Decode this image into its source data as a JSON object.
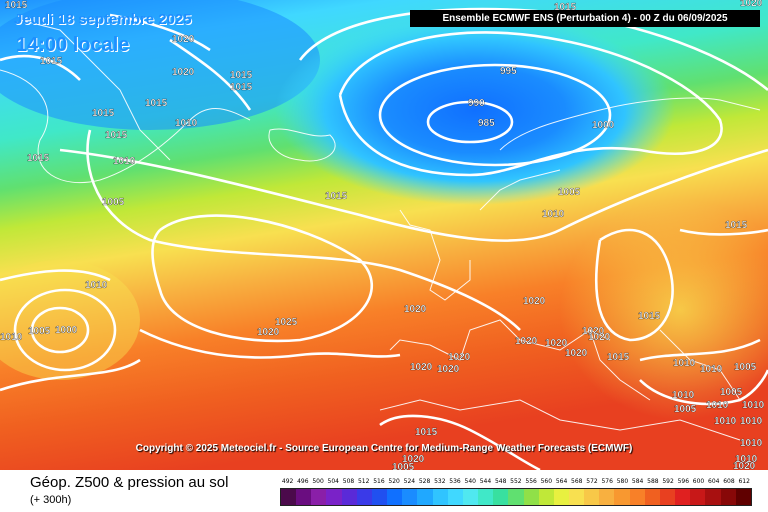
{
  "header": {
    "date": "Jeudi 18 septembre 2025",
    "time": "14:00 locale",
    "model": "Ensemble ECMWF ENS  (Perturbation 4)  -  00 Z du 06/09/2025"
  },
  "copyright": "Copyright © 2025 Meteociel.fr - Source European Centre for Medium-Range Weather Forecasts (ECMWF)",
  "footer": {
    "title": "Géop. Z500 & pression au sol",
    "subtitle": "(+ 300h)"
  },
  "scale": {
    "ticks": [
      "492",
      "496",
      "500",
      "504",
      "508",
      "512",
      "516",
      "520",
      "524",
      "528",
      "532",
      "536",
      "540",
      "544",
      "548",
      "552",
      "556",
      "560",
      "564",
      "568",
      "572",
      "576",
      "580",
      "584",
      "588",
      "592",
      "596",
      "600",
      "604",
      "608",
      "612"
    ],
    "colors": [
      "#4b0a4b",
      "#6a0d80",
      "#8a1fa8",
      "#7a22c8",
      "#5a2ad8",
      "#3a3ae8",
      "#2050f0",
      "#1070ff",
      "#1a8cff",
      "#20a8ff",
      "#30c4ff",
      "#40d8ff",
      "#50e8f0",
      "#40e8c8",
      "#38e0a0",
      "#60e070",
      "#90e048",
      "#c0e838",
      "#e8f040",
      "#f8e050",
      "#f8c848",
      "#f8b040",
      "#f89830",
      "#f88028",
      "#f06020",
      "#e84020",
      "#e02020",
      "#c81818",
      "#a81010",
      "#880808",
      "#600000"
    ]
  },
  "pressure_labels": [
    "1015",
    "1020",
    "1015",
    "1020",
    "1020",
    "1015",
    "1015",
    "1015",
    "1015",
    "1015",
    "1010",
    "1010",
    "1015",
    "1005",
    "1010",
    "1005",
    "1000",
    "1010",
    "1020",
    "1025",
    "995",
    "990",
    "985",
    "1000",
    "1015",
    "1015",
    "1005",
    "1010",
    "1020",
    "1020",
    "1020",
    "1020",
    "1020",
    "1020",
    "1020",
    "1020",
    "1020",
    "1015",
    "1015",
    "1020",
    "1010",
    "1010",
    "1005",
    "1010",
    "1005",
    "1010",
    "1010",
    "1010",
    "1010",
    "1015",
    "1010",
    "1005",
    "1020",
    "1020",
    "1015",
    "1010",
    "1005"
  ]
}
